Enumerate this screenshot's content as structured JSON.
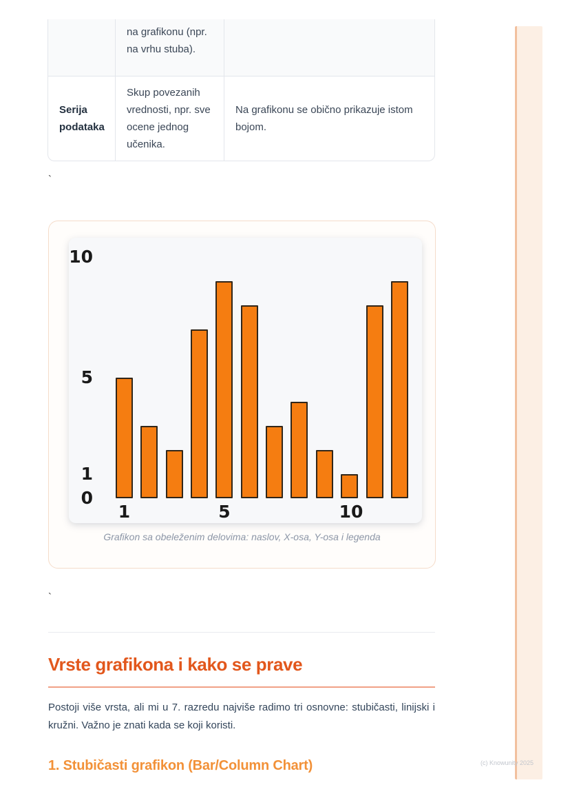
{
  "table": {
    "rows": [
      {
        "term": "",
        "definition": "na grafikonu (npr. na vrhu stuba).",
        "note": ""
      },
      {
        "term": "Serija podataka",
        "definition": "Skup povezanih vrednosti, npr. sve ocene jednog učenika.",
        "note": "Na grafikonu se obično prikazuje istom bojom."
      }
    ]
  },
  "stray_marks": {
    "backtick_1": "`",
    "backtick_2": "`"
  },
  "chart_card": {
    "caption": "Grafikon sa obeleženim delovima: naslov, X-osa, Y-osa i legenda"
  },
  "chart_data": {
    "type": "bar",
    "x": [
      1,
      2,
      3,
      4,
      5,
      6,
      7,
      8,
      9,
      10,
      11,
      12
    ],
    "values": [
      5,
      3,
      2,
      7,
      9,
      8,
      3,
      4,
      2,
      1,
      8,
      9
    ],
    "title": "",
    "xlabel": "",
    "ylabel": "",
    "y_ticks": [
      10,
      5,
      1,
      0
    ],
    "y_tick_labels": [
      "10",
      "5",
      "1",
      "0"
    ],
    "x_ticks": [
      1,
      5,
      10
    ],
    "x_tick_labels": [
      "1",
      "5",
      "10"
    ],
    "ylim": [
      0,
      10.5
    ],
    "grid": false,
    "legend": "none",
    "bar_color": "#f57d11",
    "bar_border_color": "#312619"
  },
  "section": {
    "heading": "Vrste grafikona i kako se prave",
    "paragraph_lines": [
      "Postoji više vrsta, ali mi u 7. razredu najviše radimo tri osnovne: stubičasti, linijski i",
      "kružni. Važno je znati kada se koji koristi."
    ],
    "subheading": "1. Stubičasti grafikon (Bar/Column Chart)"
  },
  "footer": {
    "copyright": "(c) Knowunity 2025"
  },
  "colors": {
    "heading_orange": "#e2571c",
    "subheading_orange": "#f29138",
    "heading_underline": "#f1a186",
    "bar_fill": "#f57d11",
    "bar_border": "#312619",
    "strip_fill": "#fcefe4",
    "strip_edge": "#f2c09e",
    "body_text": "#33455a",
    "caption_gray": "#8b95a6"
  }
}
